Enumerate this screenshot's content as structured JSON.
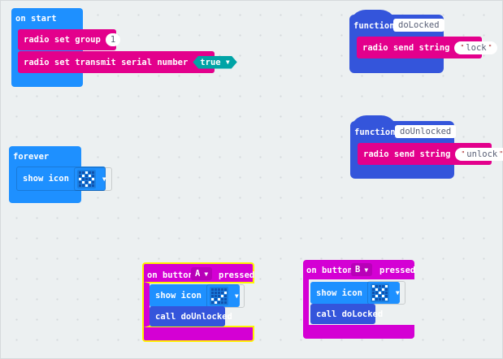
{
  "colors": {
    "basic": "#1e90ff",
    "radio": "#e3008c",
    "logic": "#00a4a6",
    "functions": "#3455db",
    "input": "#d400d4",
    "highlight": "#fff200",
    "canvas": "#ecf0f1"
  },
  "on_start": {
    "label": "on start",
    "set_group_label": "radio set group",
    "group_value": "1",
    "transmit_label": "radio set transmit serial number",
    "transmit_value": "true"
  },
  "forever": {
    "label": "forever",
    "show_icon_label": "show icon",
    "icon": "diamond",
    "icon_pattern": [
      "00100",
      "01010",
      "10001",
      "01010",
      "00100"
    ]
  },
  "func_locked": {
    "keyword": "function",
    "name": "doLocked",
    "send_label": "radio send string",
    "send_value": "lock"
  },
  "func_unlocked": {
    "keyword": "function",
    "name": "doUnlocked",
    "send_label": "radio send string",
    "send_value": "unlock"
  },
  "button_a": {
    "prefix": "on button",
    "button": "A",
    "suffix": "pressed",
    "show_icon_label": "show icon",
    "icon": "yes",
    "icon_pattern": [
      "00000",
      "00001",
      "00010",
      "10100",
      "01000"
    ],
    "call_label": "call doUnlocked",
    "selected": true
  },
  "button_b": {
    "prefix": "on button",
    "button": "B",
    "suffix": "pressed",
    "show_icon_label": "show icon",
    "icon": "no",
    "icon_pattern": [
      "10001",
      "01010",
      "00100",
      "01010",
      "10001"
    ],
    "call_label": "call doLocked"
  }
}
